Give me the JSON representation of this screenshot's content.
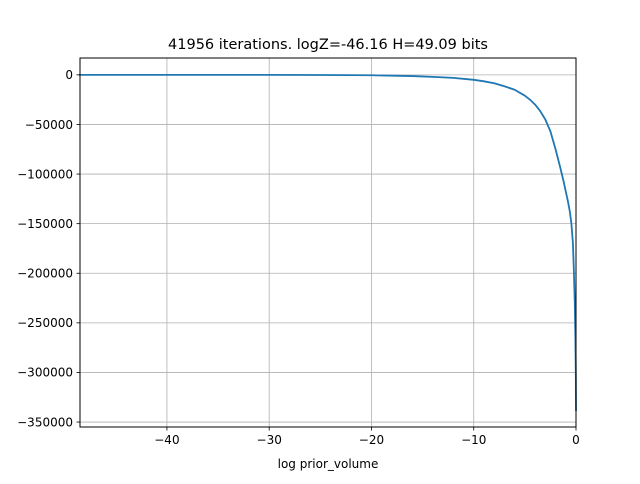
{
  "chart_data": {
    "type": "line",
    "title": "41956 iterations. logZ=-46.16 H=49.09 bits",
    "xlabel": "log prior_volume",
    "ylabel": "",
    "xlim": [
      -48.5,
      0
    ],
    "ylim": [
      -355000,
      17000
    ],
    "x_ticks": [
      -40,
      -30,
      -20,
      -10,
      0
    ],
    "x_tick_labels": [
      "−40",
      "−30",
      "−20",
      "−10",
      "0"
    ],
    "y_ticks": [
      0,
      -50000,
      -100000,
      -150000,
      -200000,
      -250000,
      -300000,
      -350000
    ],
    "y_tick_labels": [
      "0",
      "−50000",
      "−100000",
      "−150000",
      "−200000",
      "−250000",
      "−300000",
      "−350000"
    ],
    "grid": true,
    "legend": "none",
    "series": [
      {
        "color": "#1f77b4",
        "x": [
          -48.5,
          -40,
          -30,
          -25,
          -20,
          -16,
          -14,
          -12,
          -10,
          -9,
          -8,
          -7,
          -6,
          -5,
          -4.5,
          -4,
          -3.5,
          -3,
          -2.5,
          -2,
          -1.5,
          -1.2,
          -1,
          -0.8,
          -0.6,
          -0.45,
          -0.3,
          -0.2,
          -0.12,
          -0.06,
          -0.02,
          0
        ],
        "y": [
          0,
          0,
          -50,
          -150,
          -400,
          -1200,
          -2000,
          -3000,
          -5000,
          -6500,
          -8500,
          -11500,
          -15000,
          -21000,
          -25000,
          -30000,
          -36500,
          -45000,
          -57000,
          -75000,
          -95000,
          -108000,
          -117500,
          -127000,
          -138000,
          -150000,
          -170000,
          -200000,
          -230000,
          -265000,
          -300000,
          -338000
        ]
      }
    ]
  }
}
